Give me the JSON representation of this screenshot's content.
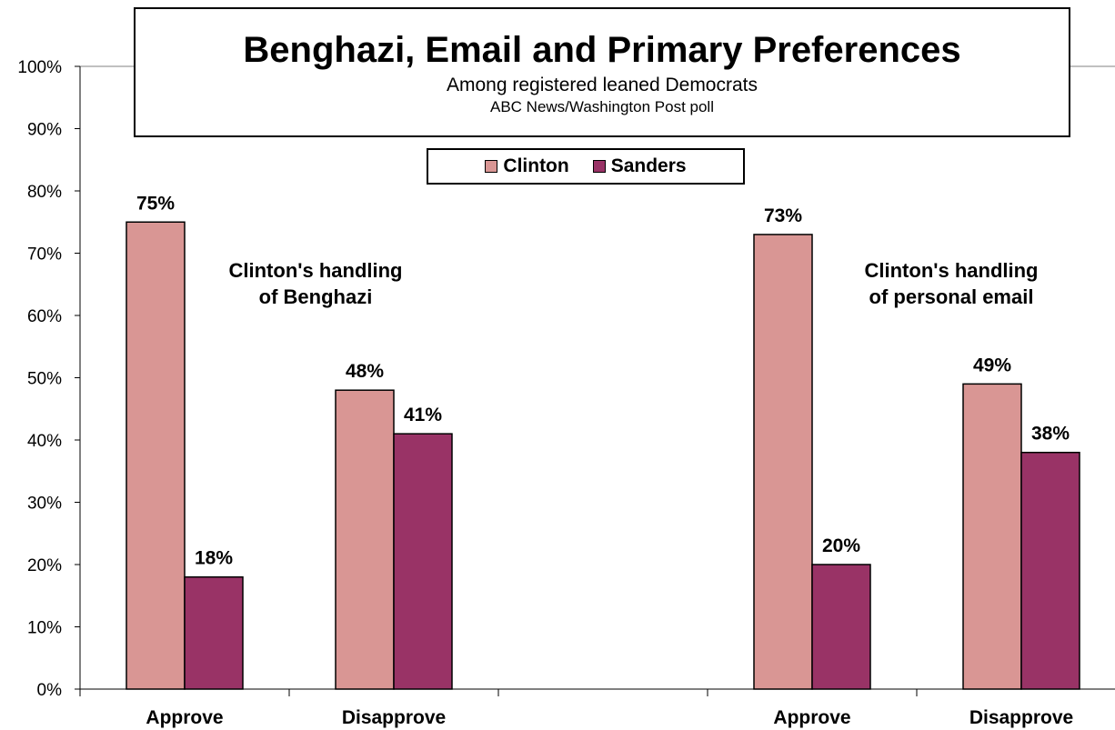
{
  "chart_data": {
    "type": "bar",
    "title": "Benghazi, Email and Primary Preferences",
    "subtitle": "Among registered leaned Democrats",
    "source": "ABC News/Washington Post poll",
    "categories": [
      "Approve",
      "Disapprove",
      "",
      "Approve",
      "Disapprove"
    ],
    "series": [
      {
        "name": "Clinton",
        "color": "#d99694",
        "values": [
          75,
          48,
          null,
          73,
          49
        ]
      },
      {
        "name": "Sanders",
        "color": "#993366",
        "values": [
          18,
          41,
          null,
          20,
          38
        ]
      }
    ],
    "data_labels": {
      "Clinton": [
        "75%",
        "48%",
        "",
        "73%",
        "49%"
      ],
      "Sanders": [
        "18%",
        "41%",
        "",
        "20%",
        "38%"
      ]
    },
    "ylim": [
      0,
      100
    ],
    "yticks": [
      "0%",
      "10%",
      "20%",
      "30%",
      "40%",
      "50%",
      "60%",
      "70%",
      "80%",
      "90%",
      "100%"
    ],
    "xlabel": "",
    "ylabel": "",
    "legend_position": "top-center",
    "grid": false,
    "annotations": [
      {
        "line1": "Clinton's handling",
        "line2": "of Benghazi"
      },
      {
        "line1": "Clinton's handling",
        "line2": "of personal email"
      }
    ]
  }
}
